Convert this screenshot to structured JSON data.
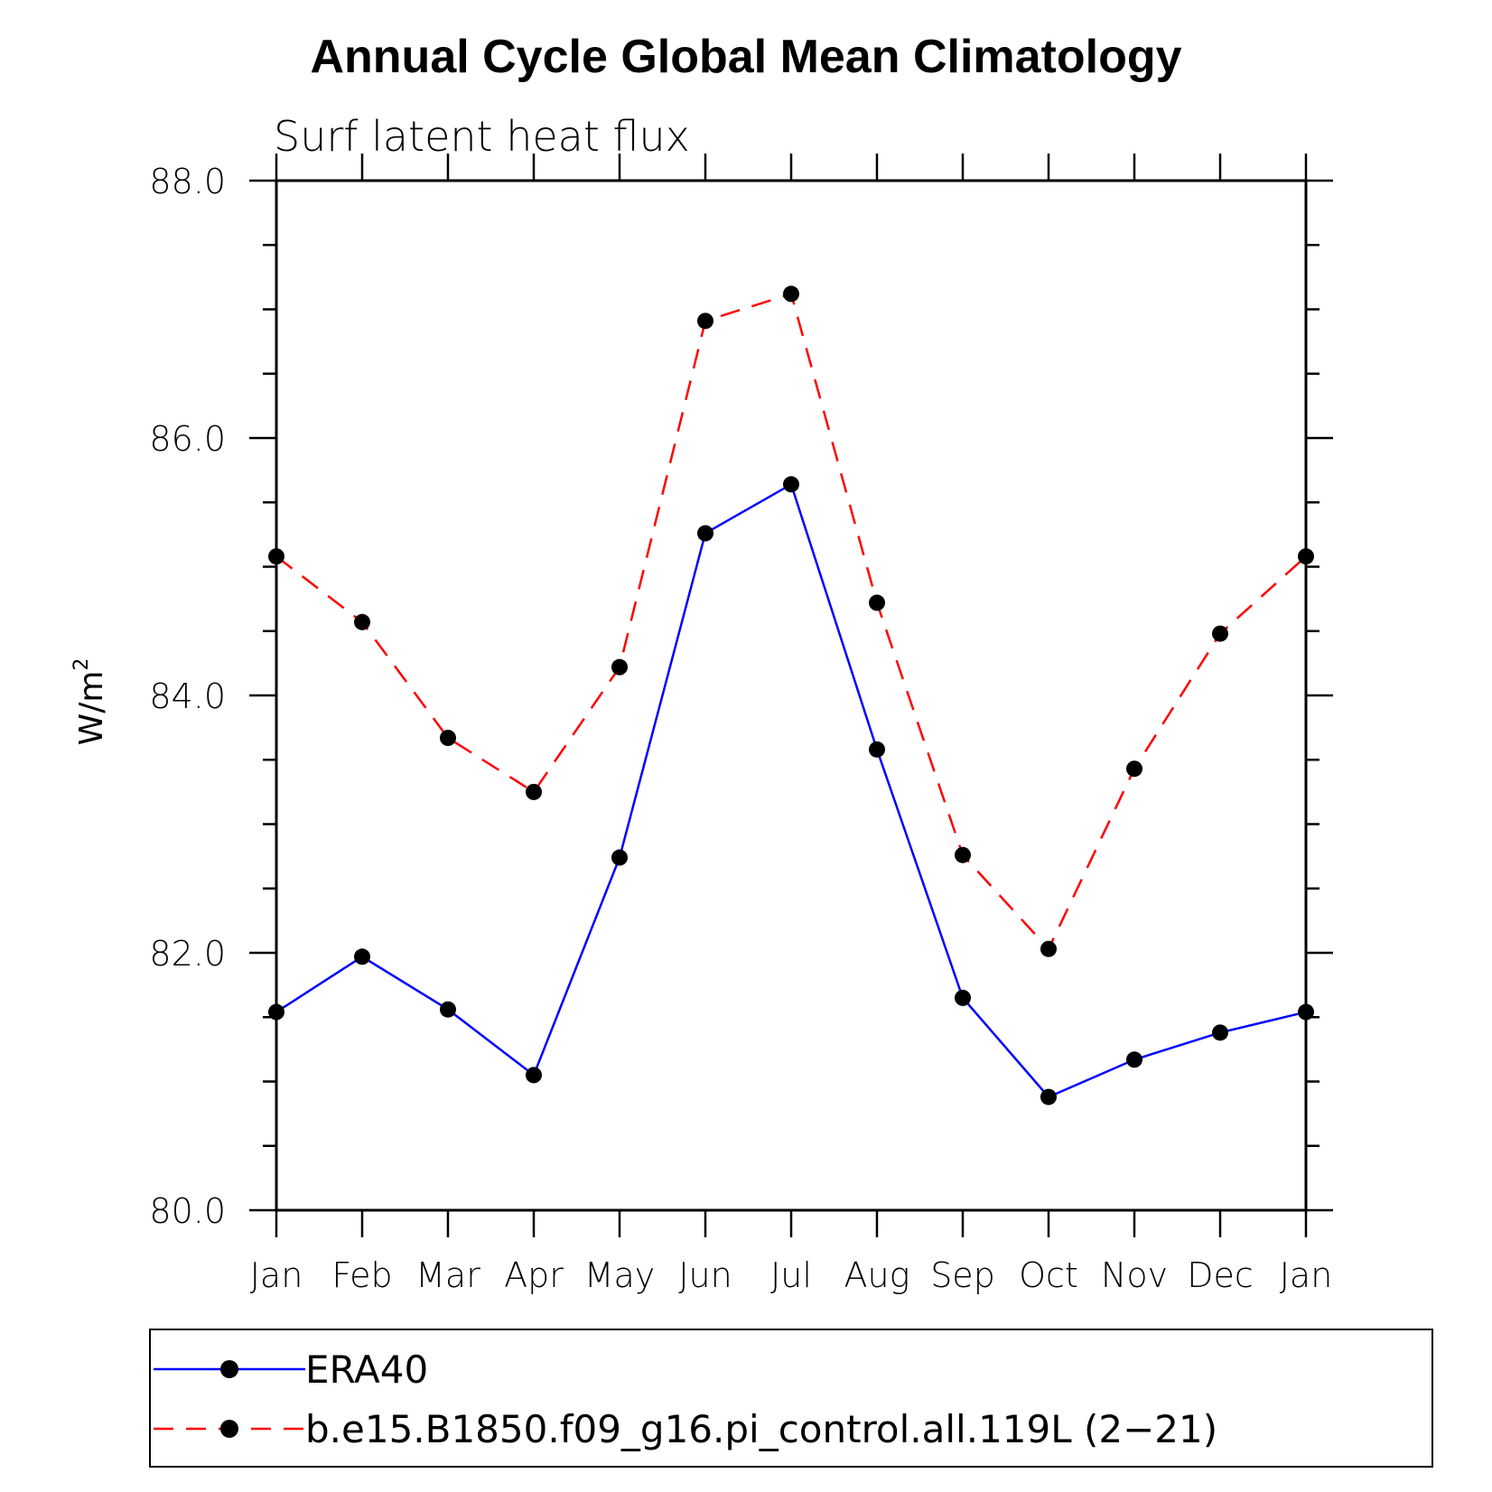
{
  "chart_data": {
    "type": "line",
    "title": "Annual Cycle Global Mean Climatology",
    "subtitle": "Surf latent heat flux",
    "xlabel": "",
    "ylabel": "W/m",
    "ylabel_superscript": "2",
    "categories": [
      "Jan",
      "Feb",
      "Mar",
      "Apr",
      "May",
      "Jun",
      "Jul",
      "Aug",
      "Sep",
      "Oct",
      "Nov",
      "Dec",
      "Jan"
    ],
    "ylim": [
      80.0,
      88.0
    ],
    "yticks": [
      "80.0",
      "82.0",
      "84.0",
      "86.0",
      "88.0"
    ],
    "grid": false,
    "legend_position": "bottom",
    "series": [
      {
        "name": "ERA40",
        "color": "#0000ff",
        "dash": "solid",
        "values": [
          81.54,
          81.97,
          81.56,
          81.05,
          82.74,
          85.26,
          85.64,
          83.58,
          81.65,
          80.88,
          81.17,
          81.38,
          81.54
        ]
      },
      {
        "name": "b.e15.B1850.f09_g16.pi_control.all.119L (2−21)",
        "color": "#ff0000",
        "dash": "dashed",
        "values": [
          85.08,
          84.57,
          83.67,
          83.25,
          84.22,
          86.91,
          87.12,
          84.72,
          82.76,
          82.03,
          83.43,
          84.48,
          85.08
        ]
      }
    ]
  }
}
